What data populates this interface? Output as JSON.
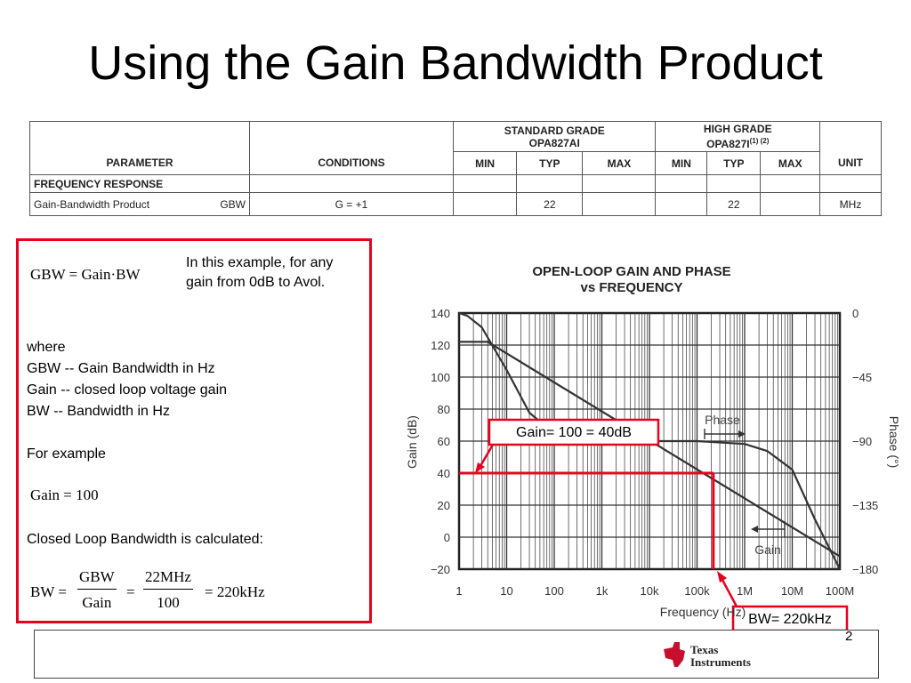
{
  "title": "Using the Gain Bandwidth Product",
  "spec_table": {
    "parameter_header": "PARAMETER",
    "conditions_header": "CONDITIONS",
    "standard_grade": "STANDARD GRADE",
    "standard_part": "OPA827AI",
    "high_grade": "HIGH GRADE",
    "high_part": "OPA827I",
    "high_footnote": "(1) (2)",
    "min": "MIN",
    "typ": "TYP",
    "max": "MAX",
    "unit_header": "UNIT",
    "section": "FREQUENCY RESPONSE",
    "row": {
      "parameter": "Gain-Bandwidth Product",
      "symbol": "GBW",
      "conditions": "G = +1",
      "std_typ": "22",
      "high_typ": "22",
      "unit": "MHz"
    }
  },
  "box": {
    "formula": "GBW = Gain·BW",
    "note_line1": "In this example, for any",
    "note_line2": "gain from 0dB to Avol.",
    "where": "where",
    "def1": "GBW -- Gain Bandwidth in Hz",
    "def2": "Gain -- closed loop voltage gain",
    "def3": "BW -- Bandwidth in Hz",
    "for_example": "For example",
    "gain_eq": "Gain = 100",
    "calc_text": "Closed Loop Bandwidth is calculated:",
    "bw_lhs": "BW =",
    "frac1_num": "GBW",
    "frac1_den": "Gain",
    "eq2": "=",
    "frac2_num": "22MHz",
    "frac2_den": "100",
    "result": "= 220kHz"
  },
  "chart_data": {
    "type": "line",
    "title": "OPEN-LOOP GAIN AND PHASE",
    "subtitle": "vs FREQUENCY",
    "xlabel": "Frequency (Hz)",
    "ylabel": "Gain (dB)",
    "y2label": "Phase (°)",
    "x_scale": "log",
    "xlim": [
      1,
      100000000
    ],
    "ylim": [
      -20,
      140
    ],
    "y2lim": [
      -180,
      0
    ],
    "x_ticks": [
      "1",
      "10",
      "100",
      "1k",
      "10k",
      "100k",
      "1M",
      "10M",
      "100M"
    ],
    "y_ticks": [
      "140",
      "120",
      "100",
      "80",
      "60",
      "40",
      "20",
      "0",
      "−20"
    ],
    "y2_ticks": [
      "0",
      "−45",
      "−90",
      "−135",
      "−180"
    ],
    "grid": true,
    "series": [
      {
        "name": "Gain",
        "x": [
          1,
          4,
          100000000
        ],
        "y": [
          122,
          122,
          -12
        ]
      },
      {
        "name": "Phase",
        "x": [
          1,
          1.5,
          3,
          10,
          30,
          100,
          1000,
          3000,
          10000,
          100000,
          1000000,
          3000000,
          10000000,
          30000000,
          100000000
        ],
        "y": [
          0,
          -2,
          -10,
          -40,
          -70,
          -85,
          -90,
          -90,
          -90,
          -90,
          -92,
          -97,
          -110,
          -145,
          -180
        ]
      }
    ],
    "annotations": {
      "gain_label": "Gain= 100 = 40dB",
      "bw_label": "BW= 220kHz",
      "marker_gain_db": 40,
      "marker_bw_hz": 220000
    }
  },
  "page_number": "2",
  "logo": {
    "line1": "Texas",
    "line2": "Instruments",
    "color": "#c8102e"
  },
  "colors": {
    "accent": "#e8001f",
    "curve": "#333333"
  }
}
